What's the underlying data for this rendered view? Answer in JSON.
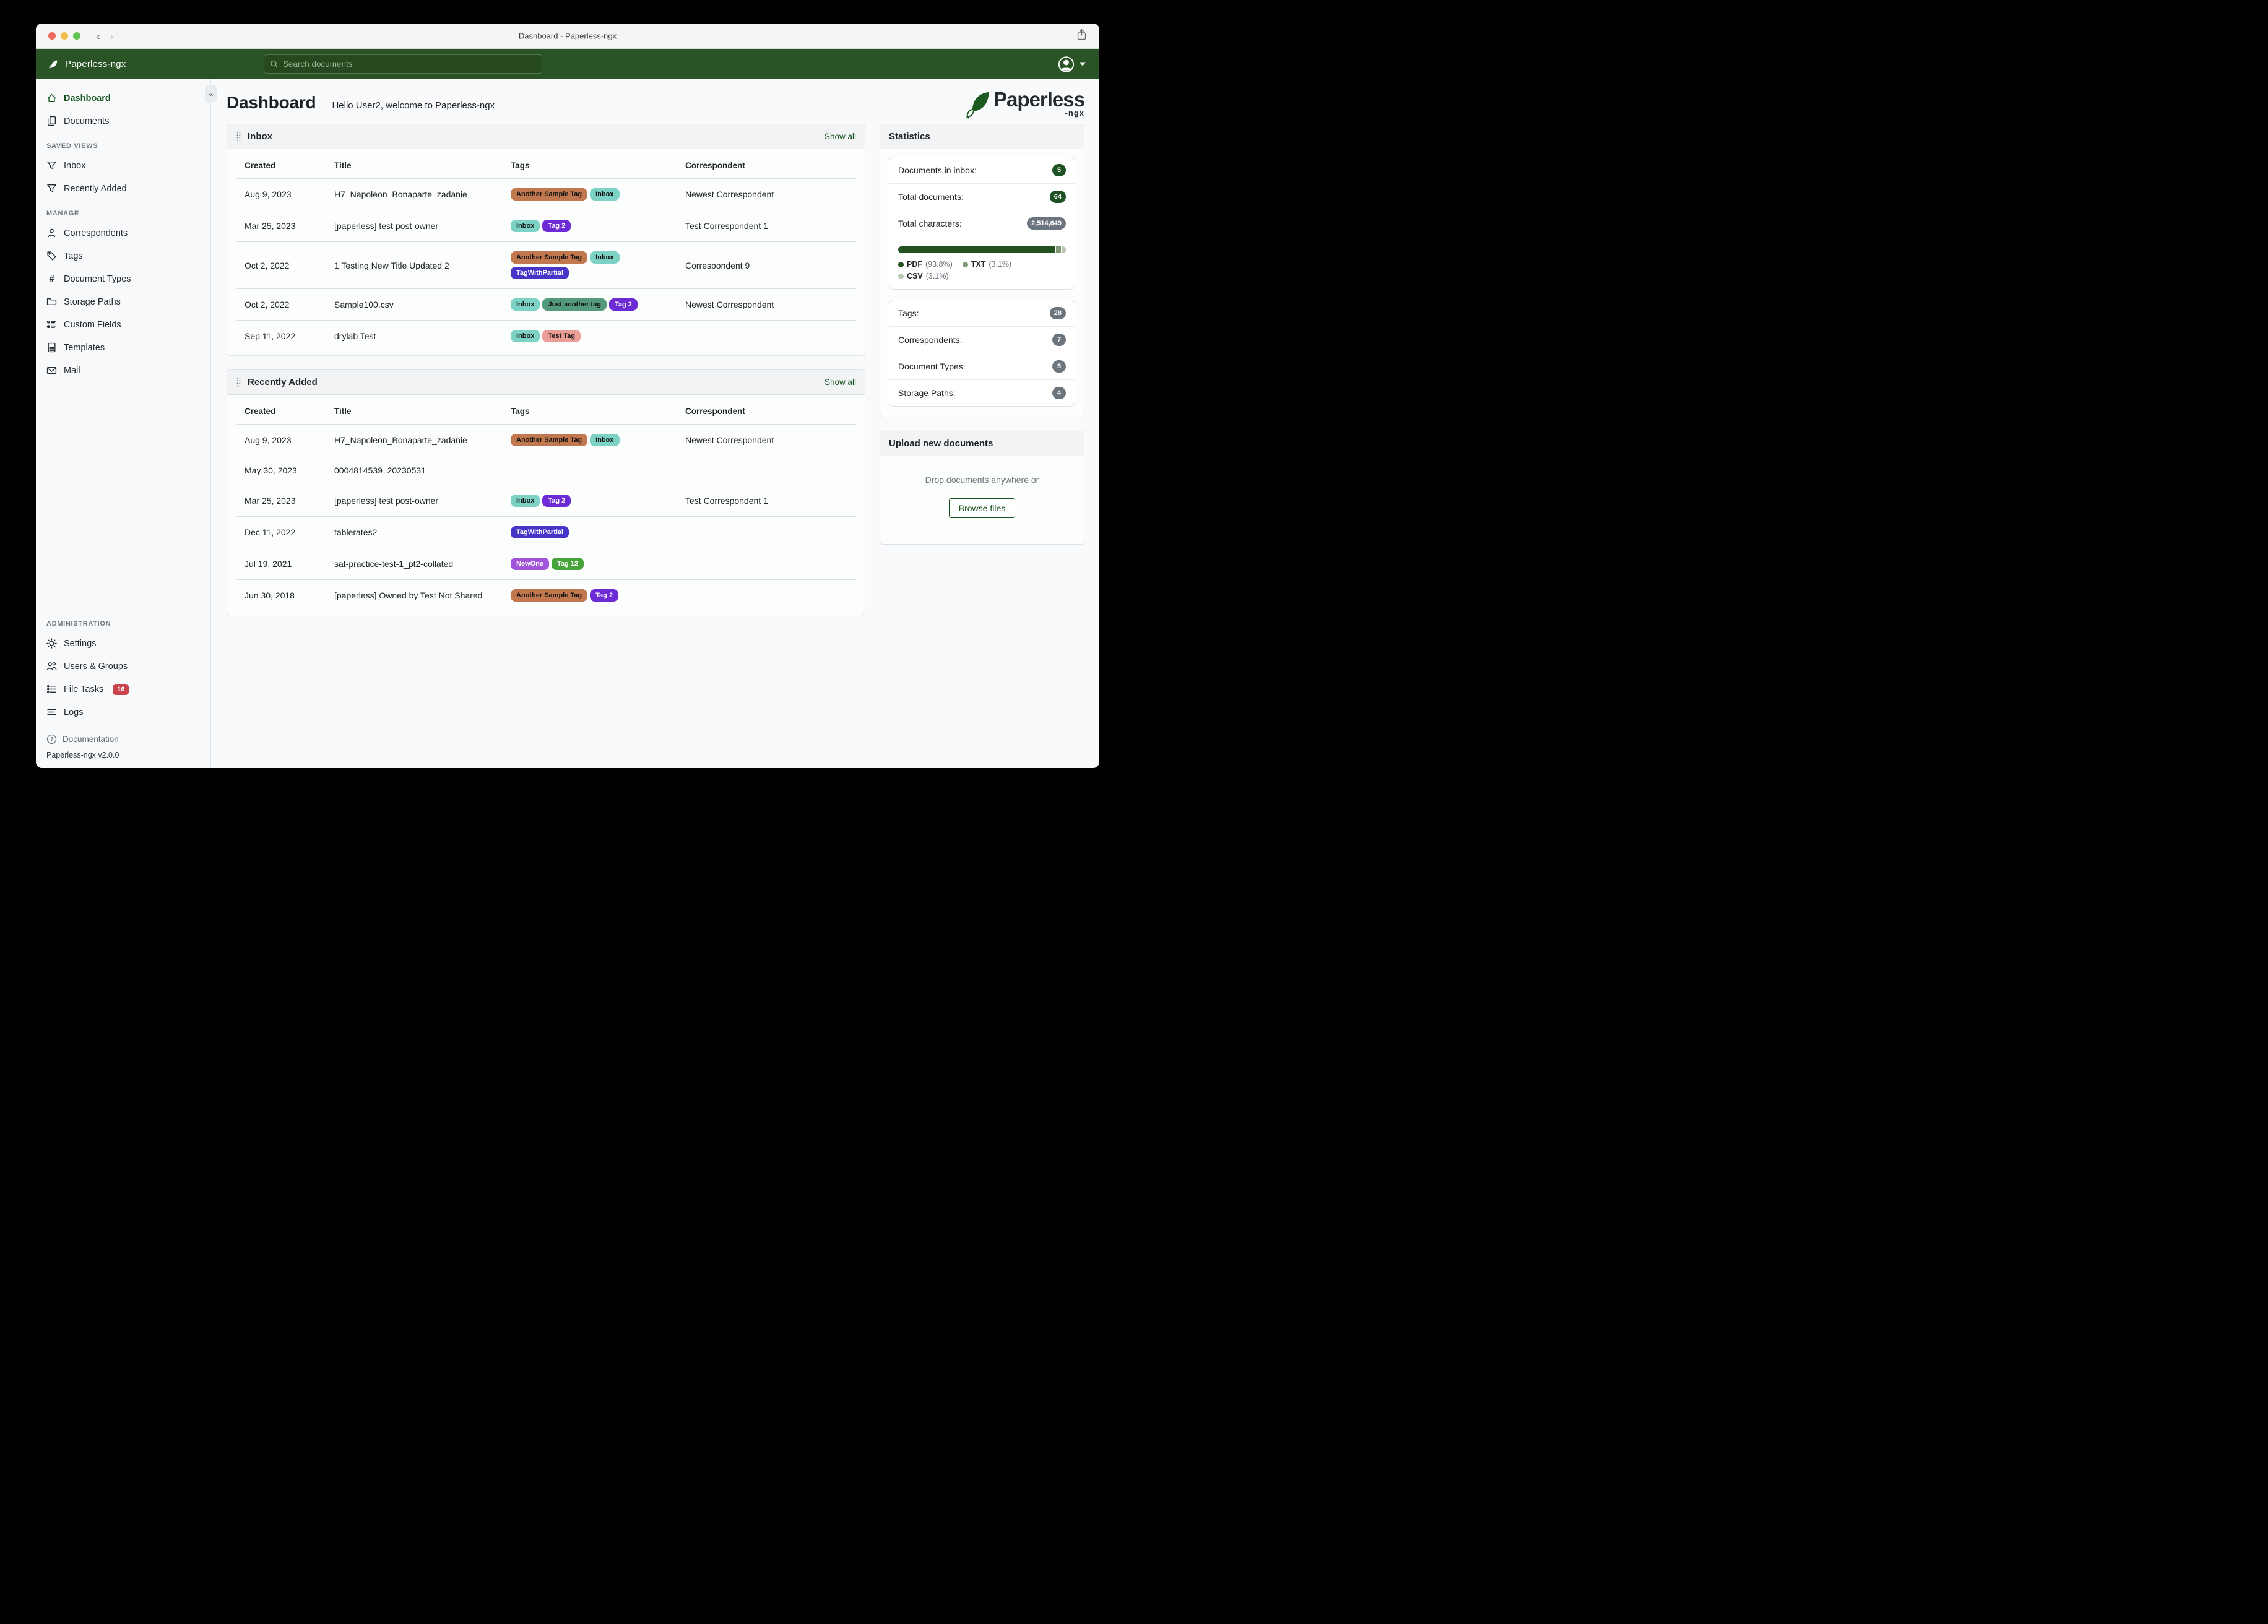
{
  "window": {
    "title": "Dashboard - Paperless-ngx"
  },
  "navbar": {
    "brand": "Paperless-ngx",
    "search_placeholder": "Search documents"
  },
  "sidebar": {
    "sections": [
      {
        "title": null,
        "items": [
          {
            "label": "Dashboard",
            "icon": "home",
            "active": true
          },
          {
            "label": "Documents",
            "icon": "documents"
          }
        ]
      },
      {
        "title": "SAVED VIEWS",
        "items": [
          {
            "label": "Inbox",
            "icon": "funnel"
          },
          {
            "label": "Recently Added",
            "icon": "funnel"
          }
        ]
      },
      {
        "title": "MANAGE",
        "items": [
          {
            "label": "Correspondents",
            "icon": "person"
          },
          {
            "label": "Tags",
            "icon": "tag"
          },
          {
            "label": "Document Types",
            "icon": "hash"
          },
          {
            "label": "Storage Paths",
            "icon": "folder"
          },
          {
            "label": "Custom Fields",
            "icon": "fields"
          },
          {
            "label": "Templates",
            "icon": "template"
          },
          {
            "label": "Mail",
            "icon": "mail"
          }
        ]
      },
      {
        "title": "ADMINISTRATION",
        "push_bottom": true,
        "items": [
          {
            "label": "Settings",
            "icon": "gear"
          },
          {
            "label": "Users & Groups",
            "icon": "users"
          },
          {
            "label": "File Tasks",
            "icon": "tasks",
            "badge": "16"
          },
          {
            "label": "Logs",
            "icon": "logs"
          }
        ]
      }
    ],
    "footer": {
      "documentation": "Documentation",
      "version": "Paperless-ngx v2.0.0"
    }
  },
  "page": {
    "title": "Dashboard",
    "greeting": "Hello User2, welcome to Paperless-ngx"
  },
  "logo": {
    "word": "Paperless",
    "suffix": "-ngx"
  },
  "tags": {
    "another_sample_tag": {
      "label": "Another Sample Tag",
      "bg": "#c1784e",
      "fg": "#111111"
    },
    "inbox": {
      "label": "Inbox",
      "bg": "#7cd2c5",
      "fg": "#111111"
    },
    "tag2": {
      "label": "Tag 2",
      "bg": "#6c2bd5",
      "fg": "#ffffff"
    },
    "tag_with_partial": {
      "label": "TagWithPartial",
      "bg": "#4636c8",
      "fg": "#ffffff"
    },
    "just_another_tag": {
      "label": "Just another tag",
      "bg": "#549a7c",
      "fg": "#111111"
    },
    "test_tag": {
      "label": "Test Tag",
      "bg": "#ec9d96",
      "fg": "#111111"
    },
    "new_one": {
      "label": "NewOne",
      "bg": "#a055d8",
      "fg": "#ffffff"
    },
    "tag12": {
      "label": "Tag 12",
      "bg": "#47a43b",
      "fg": "#ffffff"
    }
  },
  "widgets": {
    "inbox": {
      "title": "Inbox",
      "show_all_label": "Show all",
      "columns": [
        "Created",
        "Title",
        "Tags",
        "Correspondent"
      ],
      "rows": [
        {
          "created": "Aug 9, 2023",
          "title": "H7_Napoleon_Bonaparte_zadanie",
          "tags": [
            "another_sample_tag",
            "inbox"
          ],
          "correspondent": "Newest Correspondent"
        },
        {
          "created": "Mar 25, 2023",
          "title": "[paperless] test post-owner",
          "tags": [
            "inbox",
            "tag2"
          ],
          "correspondent": "Test Correspondent 1"
        },
        {
          "created": "Oct 2, 2022",
          "title": "1 Testing New Title Updated 2",
          "tags": [
            "another_sample_tag",
            "inbox",
            "tag_with_partial"
          ],
          "correspondent": "Correspondent 9"
        },
        {
          "created": "Oct 2, 2022",
          "title": "Sample100.csv",
          "tags": [
            "inbox",
            "just_another_tag",
            "tag2"
          ],
          "correspondent": "Newest Correspondent"
        },
        {
          "created": "Sep 11, 2022",
          "title": "drylab Test",
          "tags": [
            "inbox",
            "test_tag"
          ],
          "correspondent": ""
        }
      ]
    },
    "recent": {
      "title": "Recently Added",
      "show_all_label": "Show all",
      "columns": [
        "Created",
        "Title",
        "Tags",
        "Correspondent"
      ],
      "rows": [
        {
          "created": "Aug 9, 2023",
          "title": "H7_Napoleon_Bonaparte_zadanie",
          "tags": [
            "another_sample_tag",
            "inbox"
          ],
          "correspondent": "Newest Correspondent"
        },
        {
          "created": "May 30, 2023",
          "title": "0004814539_20230531",
          "tags": [],
          "correspondent": ""
        },
        {
          "created": "Mar 25, 2023",
          "title": "[paperless] test post-owner",
          "tags": [
            "inbox",
            "tag2"
          ],
          "correspondent": "Test Correspondent 1"
        },
        {
          "created": "Dec 11, 2022",
          "title": "tablerates2",
          "tags": [
            "tag_with_partial"
          ],
          "correspondent": ""
        },
        {
          "created": "Jul 19, 2021",
          "title": "sat-practice-test-1_pt2-collated",
          "tags": [
            "new_one",
            "tag12"
          ],
          "correspondent": ""
        },
        {
          "created": "Jun 30, 2018",
          "title": "[paperless] Owned by Test Not Shared",
          "tags": [
            "another_sample_tag",
            "tag2"
          ],
          "correspondent": ""
        }
      ]
    }
  },
  "statistics": {
    "title": "Statistics",
    "items": [
      {
        "label": "Documents in inbox:",
        "value": "5",
        "variant": "green"
      },
      {
        "label": "Total documents:",
        "value": "64",
        "variant": "green"
      },
      {
        "label": "Total characters:",
        "value": "2,514,649",
        "variant": "gray"
      }
    ],
    "file_types": [
      {
        "name": "PDF",
        "pct": 93.8,
        "pct_label": "(93.8%)",
        "color": "#235220"
      },
      {
        "name": "TXT",
        "pct": 3.1,
        "pct_label": "(3.1%)",
        "color": "#7e9a76"
      },
      {
        "name": "CSV",
        "pct": 3.1,
        "pct_label": "(3.1%)",
        "color": "#b7c7b0"
      }
    ],
    "counts": [
      {
        "label": "Tags:",
        "value": "28",
        "variant": "gray"
      },
      {
        "label": "Correspondents:",
        "value": "7",
        "variant": "gray"
      },
      {
        "label": "Document Types:",
        "value": "5",
        "variant": "gray"
      },
      {
        "label": "Storage Paths:",
        "value": "4",
        "variant": "gray"
      }
    ]
  },
  "upload": {
    "title": "Upload new documents",
    "hint": "Drop documents anywhere or",
    "button_label": "Browse files"
  },
  "colors": {
    "navbar": "#2a5326",
    "accent": "#17541f",
    "badge_green": "#1d5323",
    "badge_gray": "#6c757d",
    "badge_red": "#c9434a"
  }
}
